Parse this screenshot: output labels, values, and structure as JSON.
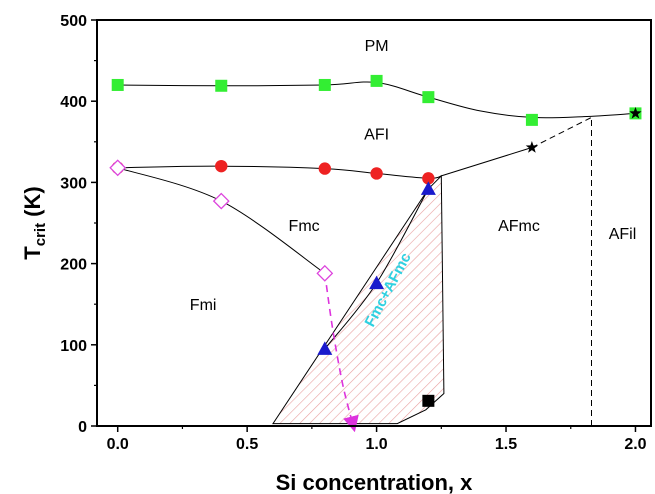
{
  "chart_data": {
    "type": "scatter",
    "xlabel": "Si concentration, x",
    "ylabel_main": "T",
    "ylabel_sub": "crit",
    "ylabel_unit": " (K)",
    "xlim": [
      -0.08,
      2.06
    ],
    "ylim": [
      0,
      500
    ],
    "xticks": [
      "0.0",
      "0.5",
      "1.0",
      "1.5",
      "2.0"
    ],
    "xtick_values": [
      0,
      0.5,
      1.0,
      1.5,
      2.0
    ],
    "yticks": [
      "0",
      "100",
      "200",
      "300",
      "400",
      "500"
    ],
    "ytick_values": [
      0,
      100,
      200,
      300,
      400,
      500
    ],
    "legend": "none",
    "grid": false,
    "series": [
      {
        "marker": "square",
        "color": "#33ee33",
        "x": [
          0,
          0.4,
          0.8,
          1.0,
          1.2,
          1.6,
          2.0
        ],
        "y": [
          420,
          419,
          420,
          425,
          405,
          377,
          385
        ]
      },
      {
        "marker": "circle",
        "color": "#ee2222",
        "x": [
          0,
          0.4,
          0.8,
          1.0,
          1.2
        ],
        "y": [
          318,
          320,
          317,
          311,
          305
        ]
      },
      {
        "marker": "open-diamond",
        "color": "#dd44dd",
        "x": [
          0,
          0.4,
          0.8
        ],
        "y": [
          318,
          277,
          188
        ]
      },
      {
        "marker": "triangle",
        "color": "#1a1acc",
        "x": [
          0.8,
          1.0,
          1.2
        ],
        "y": [
          95,
          176,
          292
        ]
      },
      {
        "marker": "star",
        "color": "#000000",
        "x": [
          1.6,
          2.0
        ],
        "y": [
          343,
          385
        ]
      },
      {
        "marker": "square",
        "color": "#000000",
        "x": [
          1.2
        ],
        "y": [
          31
        ]
      }
    ],
    "curves": [
      {
        "style": "solid",
        "color": "#000000",
        "x": [
          0,
          0.4,
          0.8,
          1.0,
          1.2,
          1.4,
          1.6,
          1.8,
          2.0
        ],
        "y": [
          420,
          419,
          420,
          423,
          405,
          388,
          380,
          381,
          385
        ]
      },
      {
        "style": "solid",
        "color": "#000000",
        "x": [
          0,
          0.4,
          0.8,
          1.0,
          1.2,
          1.25
        ],
        "y": [
          318,
          320,
          317,
          311,
          305,
          308
        ]
      },
      {
        "style": "solid",
        "color": "#000000",
        "x": [
          1.25,
          1.6
        ],
        "y": [
          308,
          343
        ]
      },
      {
        "style": "dashed",
        "color": "#000000",
        "x": [
          1.6,
          1.83
        ],
        "y": [
          343,
          380
        ]
      },
      {
        "style": "solid",
        "color": "#000000",
        "x": [
          0,
          0.4,
          0.8
        ],
        "y": [
          318,
          277,
          188
        ]
      },
      {
        "style": "solid",
        "color": "#000000",
        "x": [
          0.8,
          1.0,
          1.2
        ],
        "y": [
          95,
          176,
          292
        ]
      },
      {
        "style": "dashed",
        "color": "#dd33dd",
        "arrow": true,
        "x": [
          0.8,
          0.83,
          0.87,
          0.91
        ],
        "y": [
          188,
          120,
          50,
          0
        ]
      },
      {
        "style": "dashed",
        "color": "#000000",
        "x": [
          1.83,
          1.83
        ],
        "y": [
          0,
          380
        ]
      }
    ],
    "hatched_region": {
      "label": "Fmc+AFmc",
      "x": [
        0.6,
        1.08,
        1.19,
        1.26,
        1.25,
        1.2
      ],
      "y": [
        3,
        3,
        20,
        40,
        308,
        292
      ]
    },
    "regions": [
      {
        "label": "PM",
        "x": 1.0,
        "y": 462
      },
      {
        "label": "AFI",
        "x": 1.0,
        "y": 353
      },
      {
        "label": "Fmc",
        "x": 0.72,
        "y": 240
      },
      {
        "label": "Fmi",
        "x": 0.33,
        "y": 143
      },
      {
        "label": "AFmc",
        "x": 1.55,
        "y": 240
      },
      {
        "label": "AFil",
        "x": 1.95,
        "y": 230
      }
    ]
  }
}
